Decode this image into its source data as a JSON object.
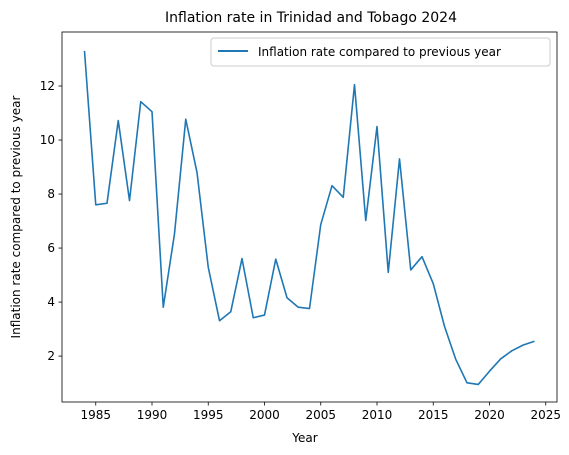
{
  "chart_data": {
    "type": "line",
    "title": "Inflation rate in Trinidad and Tobago 2024",
    "xlabel": "Year",
    "ylabel": "Inflation rate compared to previous year",
    "xlim": [
      1982,
      2026
    ],
    "ylim": [
      0.3,
      14.0
    ],
    "xticks": [
      1985,
      1990,
      1995,
      2000,
      2005,
      2010,
      2015,
      2020,
      2025
    ],
    "yticks": [
      2,
      4,
      6,
      8,
      10,
      12
    ],
    "grid": false,
    "legend_position": "top-right",
    "colors": {
      "series": "#1f77b4",
      "axes": "#000000",
      "legend_border": "#cccccc"
    },
    "series": [
      {
        "name": "Inflation rate compared to previous year",
        "x": [
          1984,
          1985,
          1986,
          1987,
          1988,
          1989,
          1990,
          1991,
          1992,
          1993,
          1994,
          1995,
          1996,
          1997,
          1998,
          1999,
          2000,
          2001,
          2002,
          2003,
          2004,
          2005,
          2006,
          2007,
          2008,
          2009,
          2010,
          2011,
          2012,
          2013,
          2014,
          2015,
          2016,
          2017,
          2018,
          2019,
          2020,
          2021,
          2022,
          2023,
          2024
        ],
        "values": [
          13.3,
          7.6,
          7.66,
          10.72,
          7.76,
          11.42,
          11.05,
          3.81,
          6.53,
          10.77,
          8.8,
          5.29,
          3.31,
          3.64,
          5.61,
          3.42,
          3.52,
          5.59,
          4.16,
          3.81,
          3.76,
          6.87,
          8.31,
          7.88,
          12.05,
          7.02,
          10.5,
          5.1,
          9.3,
          5.19,
          5.68,
          4.68,
          3.1,
          1.88,
          1.01,
          0.95,
          1.44,
          1.9,
          2.2,
          2.41,
          2.55
        ]
      }
    ]
  }
}
